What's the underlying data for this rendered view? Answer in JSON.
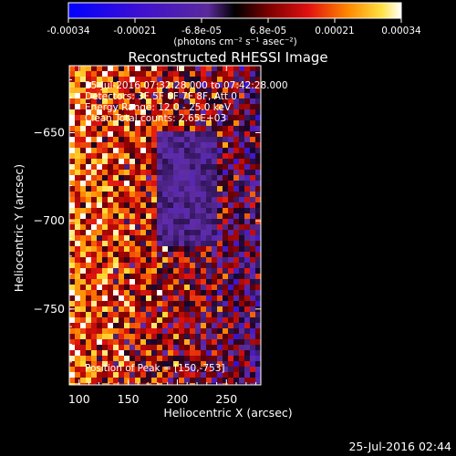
{
  "colorbar": {
    "ticks": [
      "-0.00034",
      "-0.00021",
      "-6.8e-05",
      "6.8e-05",
      "0.00021",
      "0.00034"
    ],
    "unit_label": "(photons cm⁻² s⁻¹ asec⁻²)",
    "range": [
      -0.00034,
      0.00034
    ]
  },
  "chart_data": {
    "type": "heatmap",
    "title": "Reconstructed RHESSI Image",
    "xlabel": "Heliocentric X (arcsec)",
    "ylabel": "Heliocentric Y (arcsec)",
    "xlim": [
      90,
      285
    ],
    "ylim": [
      -793,
      -612
    ],
    "x_ticks": [
      100,
      150,
      200,
      250
    ],
    "y_ticks": [
      -650,
      -700,
      -750
    ],
    "annotations": [
      "25-Jul-2016 07:32:28.000 to 07:42:28.000",
      "Detectors: 3F 5F 6F 7F 8F, Att 0",
      "Energy Range: 12.0 - 25.0 keV",
      "Clean    Total counts: 2.65E+03"
    ],
    "peak_label": "Position of Peak = [150,-753]",
    "peak": [
      150,
      -753
    ]
  },
  "footer_timestamp": "25-Jul-2016 02:44"
}
